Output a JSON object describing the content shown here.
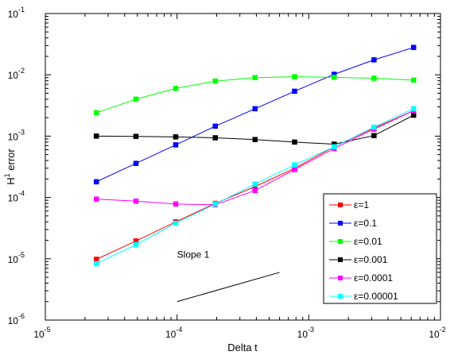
{
  "chart_data": {
    "type": "line",
    "xlabel": "Delta t",
    "ylabel": "H^1 error",
    "xscale": "log",
    "yscale": "log",
    "xlim": [
      1e-05,
      0.01
    ],
    "ylim": [
      1e-06,
      0.1
    ],
    "grid": false,
    "legend_position": "bottom-right",
    "x_tick_labels": [
      {
        "base": "10",
        "exp": "-5"
      },
      {
        "base": "10",
        "exp": "-4"
      },
      {
        "base": "10",
        "exp": "-3"
      },
      {
        "base": "10",
        "exp": "-2"
      }
    ],
    "y_tick_labels": [
      {
        "base": "10",
        "exp": "-6"
      },
      {
        "base": "10",
        "exp": "-5"
      },
      {
        "base": "10",
        "exp": "-4"
      },
      {
        "base": "10",
        "exp": "-3"
      },
      {
        "base": "10",
        "exp": "-2"
      },
      {
        "base": "10",
        "exp": "-1"
      }
    ],
    "x": [
      2.44e-05,
      4.88e-05,
      9.77e-05,
      0.000195,
      0.000391,
      0.000781,
      0.00156,
      0.00313,
      0.00625
    ],
    "series": [
      {
        "name": "ε=1",
        "color": "#ff0000",
        "values": [
          9.8e-06,
          1.95e-05,
          4e-05,
          8e-05,
          0.00015,
          0.0003,
          0.00067,
          0.00135,
          0.0026
        ]
      },
      {
        "name": "ε=0.1",
        "color": "#0000ff",
        "values": [
          0.00018,
          0.00036,
          0.00072,
          0.00145,
          0.0028,
          0.0054,
          0.0102,
          0.0175,
          0.028
        ]
      },
      {
        "name": "ε=0.01",
        "color": "#00ff00",
        "values": [
          0.0024,
          0.004,
          0.006,
          0.0079,
          0.009,
          0.0093,
          0.0091,
          0.0088,
          0.0082
        ]
      },
      {
        "name": "ε=0.001",
        "color": "#000000",
        "values": [
          0.001,
          0.00099,
          0.00097,
          0.00094,
          0.00088,
          0.0008,
          0.00074,
          0.00102,
          0.0022
        ]
      },
      {
        "name": "ε=0.0001",
        "color": "#ff00ff",
        "values": [
          9.4e-05,
          8.7e-05,
          7.8e-05,
          7.6e-05,
          0.00013,
          0.000285,
          0.00063,
          0.0013,
          0.0026
        ]
      },
      {
        "name": "ε=0.00001",
        "color": "#00ffff",
        "values": [
          8.3e-06,
          1.7e-05,
          3.8e-05,
          7.8e-05,
          0.000165,
          0.00034,
          0.00067,
          0.0014,
          0.0028
        ]
      }
    ],
    "annotation": {
      "text": "Slope 1",
      "text_at": [
        0.0001,
        1.2e-05
      ],
      "line_from": [
        0.0001,
        2e-06
      ],
      "line_to": [
        0.0006,
        6e-06
      ]
    }
  }
}
